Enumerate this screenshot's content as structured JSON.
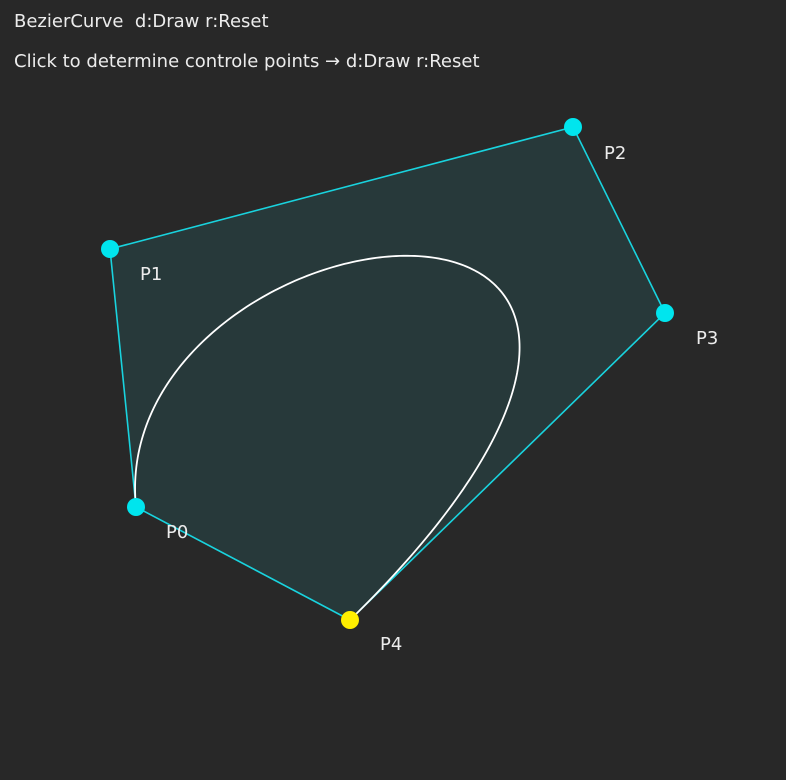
{
  "header": {
    "title": "BezierCurve  d:Draw r:Reset",
    "hint": "Click to determine controle points → d:Draw r:Reset"
  },
  "colors": {
    "background": "#282828",
    "polygon_fill": "#27393a",
    "polygon_stroke": "#19d3de",
    "control_point": "#00e5ee",
    "active_point": "#ffee00",
    "curve": "#ffffff",
    "text": "#ececec"
  },
  "control_points": [
    {
      "label": "P0"
    },
    {
      "label": "P1"
    },
    {
      "label": "P2"
    },
    {
      "label": "P3"
    },
    {
      "label": "P4"
    }
  ]
}
